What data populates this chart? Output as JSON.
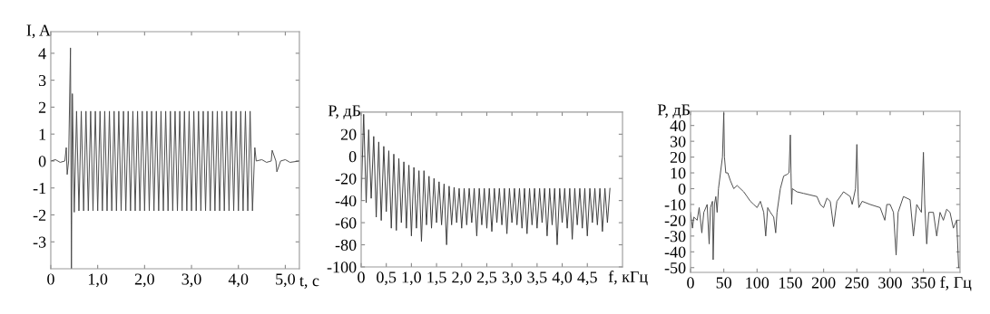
{
  "chart_data": [
    {
      "type": "line",
      "ylabel": "I, A",
      "xlabel": "t, с",
      "xlim": [
        0,
        5.3
      ],
      "ylim": [
        -4,
        4.8
      ],
      "xticks": [
        0,
        {
          "value": 1,
          "label": "1,0"
        },
        {
          "value": 2,
          "label": "2,0"
        },
        {
          "value": 3,
          "label": "3,0"
        },
        {
          "value": 4,
          "label": "4,0"
        },
        {
          "value": 5,
          "label": "5,0"
        }
      ],
      "yticks": [
        -3,
        -2,
        -1,
        0,
        1,
        2,
        3,
        4
      ],
      "grid": false,
      "legend": false,
      "series": [
        {
          "color": "#4a4a4a",
          "x": [
            0,
            0.1,
            0.2,
            0.3,
            0.33,
            0.35,
            0.38,
            0.42,
            0.44,
            0.46,
            0.5,
            0.55,
            0.6,
            0.65,
            0.7,
            0.75,
            0.8,
            0.85,
            0.9,
            0.95,
            1.0,
            1.05,
            1.1,
            1.15,
            1.2,
            1.25,
            1.3,
            1.35,
            1.4,
            1.45,
            1.5,
            1.55,
            1.6,
            1.65,
            1.7,
            1.75,
            1.8,
            1.85,
            1.9,
            1.95,
            2.0,
            2.05,
            2.1,
            2.15,
            2.2,
            2.25,
            2.3,
            2.35,
            2.4,
            2.45,
            2.5,
            2.55,
            2.6,
            2.65,
            2.7,
            2.75,
            2.8,
            2.85,
            2.9,
            2.95,
            3.0,
            3.05,
            3.1,
            3.15,
            3.2,
            3.25,
            3.3,
            3.35,
            3.4,
            3.45,
            3.5,
            3.55,
            3.6,
            3.65,
            3.7,
            3.75,
            3.8,
            3.85,
            3.9,
            3.95,
            4.0,
            4.05,
            4.1,
            4.15,
            4.2,
            4.25,
            4.3,
            4.35,
            4.38,
            4.5,
            4.6,
            4.7,
            4.72,
            4.8,
            4.82,
            4.9,
            5.0,
            5.1,
            5.3
          ],
          "values": [
            0,
            0.05,
            -0.05,
            0,
            0.5,
            -0.5,
            0,
            4.2,
            -4.0,
            2.5,
            -1.9,
            1.85,
            -1.85,
            1.85,
            -1.85,
            1.85,
            -1.85,
            1.85,
            -1.85,
            1.85,
            -1.85,
            1.85,
            -1.85,
            1.85,
            -1.85,
            1.85,
            -1.85,
            1.85,
            -1.85,
            1.85,
            -1.85,
            1.85,
            -1.85,
            1.85,
            -1.85,
            1.85,
            -1.85,
            1.85,
            -1.85,
            1.85,
            -1.85,
            1.85,
            -1.85,
            1.85,
            -1.85,
            1.85,
            -1.85,
            1.85,
            -1.85,
            1.85,
            -1.85,
            1.85,
            -1.85,
            1.85,
            -1.85,
            1.85,
            -1.85,
            1.85,
            -1.85,
            1.85,
            -1.85,
            1.85,
            -1.85,
            1.85,
            -1.85,
            1.85,
            -1.85,
            1.85,
            -1.85,
            1.85,
            -1.85,
            1.85,
            -1.85,
            1.85,
            -1.85,
            1.85,
            -1.85,
            1.85,
            -1.85,
            1.85,
            -1.85,
            1.85,
            -1.85,
            1.85,
            -1.85,
            1.85,
            -1.85,
            0.5,
            0,
            0.05,
            -0.05,
            0,
            0.4,
            0,
            -0.4,
            0,
            0.05,
            -0.05,
            0
          ]
        }
      ]
    },
    {
      "type": "line",
      "ylabel": "P, дБ",
      "xlabel": "f, кГц",
      "xlim": [
        0,
        5.2
      ],
      "ylim": [
        -100,
        40
      ],
      "xticks": [
        0,
        {
          "value": 0.5,
          "label": "0,5"
        },
        {
          "value": 1,
          "label": "1,0"
        },
        {
          "value": 1.5,
          "label": "1,5"
        },
        {
          "value": 2,
          "label": "2,0"
        },
        {
          "value": 2.5,
          "label": "2,5"
        },
        {
          "value": 3,
          "label": "3,0"
        },
        {
          "value": 3.5,
          "label": "3,5"
        },
        {
          "value": 4,
          "label": "4,0"
        },
        {
          "value": 4.5,
          "label": "4,5"
        }
      ],
      "yticks": [
        -100,
        -80,
        -60,
        -40,
        -20,
        0,
        20
      ],
      "grid": false,
      "legend": false,
      "series": [
        {
          "color": "#3a3a3a",
          "x": [
            0,
            0.05,
            0.1,
            0.15,
            0.2,
            0.25,
            0.3,
            0.35,
            0.4,
            0.45,
            0.5,
            0.55,
            0.6,
            0.65,
            0.7,
            0.75,
            0.8,
            0.85,
            0.9,
            0.95,
            1.0,
            1.05,
            1.1,
            1.15,
            1.2,
            1.25,
            1.3,
            1.35,
            1.4,
            1.45,
            1.5,
            1.55,
            1.6,
            1.65,
            1.7,
            1.75,
            1.8,
            1.85,
            1.9,
            1.95,
            2.0,
            2.05,
            2.1,
            2.15,
            2.2,
            2.25,
            2.3,
            2.35,
            2.4,
            2.45,
            2.5,
            2.55,
            2.6,
            2.65,
            2.7,
            2.75,
            2.8,
            2.85,
            2.9,
            2.95,
            3.0,
            3.05,
            3.1,
            3.15,
            3.2,
            3.25,
            3.3,
            3.35,
            3.4,
            3.45,
            3.5,
            3.55,
            3.6,
            3.65,
            3.7,
            3.75,
            3.8,
            3.85,
            3.9,
            3.95,
            4.0,
            4.05,
            4.1,
            4.15,
            4.2,
            4.25,
            4.3,
            4.35,
            4.4,
            4.45,
            4.5,
            4.55,
            4.6,
            4.65,
            4.7,
            4.75,
            4.8,
            4.85,
            4.9,
            4.95
          ],
          "values": [
            -40,
            38,
            -42,
            24,
            -38,
            18,
            -55,
            13,
            -58,
            9,
            -50,
            5,
            -65,
            2,
            -67,
            -2,
            -60,
            -5,
            -65,
            -8,
            -72,
            -10,
            -65,
            -13,
            -77,
            -13,
            -62,
            -18,
            -65,
            -20,
            -60,
            -23,
            -62,
            -25,
            -80,
            -27,
            -62,
            -28,
            -60,
            -29,
            -65,
            -29,
            -62,
            -29,
            -60,
            -29,
            -72,
            -29,
            -62,
            -29,
            -65,
            -29,
            -68,
            -29,
            -60,
            -29,
            -62,
            -29,
            -70,
            -29,
            -60,
            -29,
            -62,
            -29,
            -65,
            -29,
            -70,
            -29,
            -62,
            -29,
            -65,
            -29,
            -60,
            -29,
            -72,
            -29,
            -62,
            -29,
            -80,
            -29,
            -60,
            -29,
            -65,
            -29,
            -75,
            -29,
            -62,
            -29,
            -65,
            -29,
            -72,
            -29,
            -60,
            -29,
            -62,
            -29,
            -68,
            -29,
            -60,
            -29
          ]
        }
      ]
    },
    {
      "type": "line",
      "ylabel": "P, дБ",
      "xlabel": "f, Гц",
      "xlim": [
        0,
        405
      ],
      "ylim": [
        -53,
        49
      ],
      "xticks": [
        0,
        50,
        100,
        150,
        200,
        250,
        300,
        350
      ],
      "yticks": [
        -50,
        -40,
        -30,
        -20,
        -10,
        0,
        10,
        20,
        30,
        40
      ],
      "grid": false,
      "legend": false,
      "series": [
        {
          "color": "#4a4a4a",
          "x": [
            0,
            3,
            5,
            10,
            13,
            17,
            20,
            25,
            28,
            30,
            33,
            34,
            36,
            38,
            40,
            42,
            45,
            48,
            50,
            51,
            53,
            56,
            60,
            65,
            70,
            75,
            80,
            85,
            90,
            95,
            100,
            105,
            110,
            113,
            116,
            120,
            125,
            128,
            130,
            135,
            140,
            145,
            148,
            150,
            151,
            152,
            153,
            160,
            170,
            180,
            190,
            195,
            200,
            205,
            210,
            215,
            220,
            230,
            240,
            243,
            248,
            250,
            252,
            253,
            258,
            270,
            285,
            292,
            295,
            300,
            305,
            309,
            312,
            320,
            330,
            335,
            340,
            347,
            350,
            352,
            355,
            358,
            365,
            370,
            375,
            380,
            385,
            390,
            395,
            400,
            403
          ],
          "values": [
            -15,
            -25,
            -18,
            -20,
            -12,
            -28,
            -15,
            -10,
            -35,
            -12,
            -8,
            -45,
            -10,
            -5,
            -15,
            0,
            10,
            20,
            48,
            20,
            10,
            10,
            5,
            0,
            2,
            0,
            -2,
            -5,
            -8,
            -10,
            -12,
            -8,
            -15,
            -30,
            -12,
            -15,
            -18,
            -28,
            -15,
            0,
            8,
            9,
            10,
            34,
            10,
            -10,
            0,
            -2,
            -3,
            -4,
            -5,
            -10,
            -12,
            -6,
            -8,
            -24,
            -8,
            -2,
            -5,
            -10,
            0,
            28,
            -5,
            -12,
            -8,
            -10,
            -12,
            -20,
            -10,
            -10,
            -15,
            -42,
            -15,
            -5,
            -7,
            -30,
            -10,
            -15,
            23,
            -10,
            -35,
            -15,
            -15,
            -30,
            -15,
            -20,
            -13,
            -15,
            -25,
            -20,
            -50
          ]
        }
      ]
    }
  ]
}
